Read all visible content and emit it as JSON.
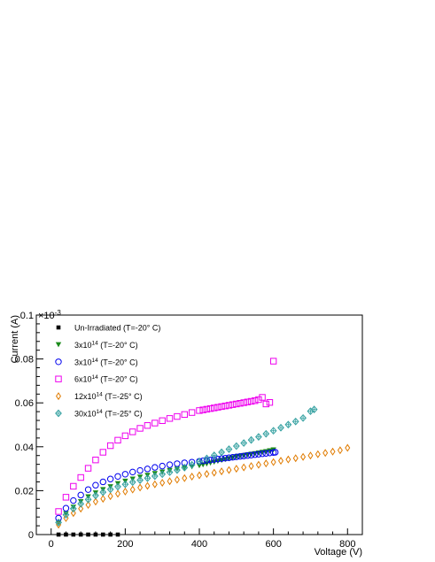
{
  "chart_data": {
    "type": "scatter",
    "title": "",
    "xlabel": "Voltage (V)",
    "ylabel": "Current (A)",
    "y_multiplier_label": "×10",
    "y_multiplier_exp": "-3",
    "xlim": [
      -40,
      840
    ],
    "ylim": [
      0,
      0.1
    ],
    "xticks": [
      0,
      200,
      400,
      600,
      800
    ],
    "xtick_labels": [
      "0",
      "200",
      "400",
      "600",
      "800"
    ],
    "yticks": [
      0,
      0.02,
      0.04,
      0.06,
      0.08,
      0.1
    ],
    "ytick_labels": [
      "0",
      "0.02",
      "0.04",
      "0.06",
      "0.08",
      "0.1"
    ],
    "grid": false,
    "legend_position": "top-left",
    "series": [
      {
        "name": "Un-Irradiated (T=-20° C)",
        "legend_base": "Un-Irradiated (T=-20° C)",
        "legend_exp": "",
        "legend_tail": "",
        "marker": "square-filled",
        "color": "#000000",
        "x": [
          20,
          40,
          60,
          80,
          100,
          120,
          140,
          160,
          180
        ],
        "y": [
          0.0,
          0.0,
          0.0,
          0.0,
          0.0,
          0.0,
          0.0,
          0.0,
          0.0
        ]
      },
      {
        "name": "3x10^14 (T=-20° C)",
        "legend_base": "3x10",
        "legend_exp": "14",
        "legend_tail": " (T=-20° C)",
        "marker": "triangle-down-filled",
        "color": "#1a8a1a",
        "x": [
          20,
          40,
          60,
          80,
          100,
          120,
          140,
          160,
          180,
          200,
          220,
          240,
          260,
          280,
          300,
          320,
          340,
          360,
          380,
          400,
          410,
          420,
          430,
          440,
          450,
          460,
          470,
          480,
          490,
          500,
          510,
          520,
          530,
          540,
          550,
          560,
          570,
          580,
          590,
          600
        ],
        "y": [
          0.0055,
          0.0095,
          0.0125,
          0.015,
          0.0172,
          0.019,
          0.0205,
          0.0218,
          0.0232,
          0.0243,
          0.0253,
          0.0262,
          0.027,
          0.0278,
          0.0285,
          0.0292,
          0.0298,
          0.0304,
          0.0309,
          0.0314,
          0.0318,
          0.0322,
          0.0326,
          0.033,
          0.0334,
          0.0338,
          0.0342,
          0.0346,
          0.035,
          0.0354,
          0.0357,
          0.036,
          0.0363,
          0.0366,
          0.0369,
          0.0372,
          0.0375,
          0.0378,
          0.0382,
          0.0386
        ]
      },
      {
        "name": "3x10^14 (T=-20° C)",
        "legend_base": "3x10",
        "legend_exp": "14",
        "legend_tail": " (T=-20° C)",
        "marker": "circle-open",
        "color": "#0000ee",
        "x": [
          20,
          40,
          60,
          80,
          100,
          120,
          140,
          160,
          180,
          200,
          220,
          240,
          260,
          280,
          300,
          320,
          340,
          360,
          380,
          400,
          410,
          420,
          430,
          440,
          450,
          460,
          470,
          480,
          490,
          500,
          510,
          520,
          530,
          540,
          550,
          560,
          570,
          580,
          590,
          600,
          605
        ],
        "y": [
          0.0075,
          0.012,
          0.0155,
          0.018,
          0.0205,
          0.0225,
          0.024,
          0.0253,
          0.0265,
          0.0275,
          0.0285,
          0.0292,
          0.0299,
          0.0306,
          0.0312,
          0.0318,
          0.0323,
          0.0327,
          0.033,
          0.0334,
          0.0336,
          0.0338,
          0.034,
          0.0342,
          0.0344,
          0.0346,
          0.0348,
          0.035,
          0.0352,
          0.0354,
          0.0356,
          0.0358,
          0.036,
          0.0362,
          0.0364,
          0.0366,
          0.0368,
          0.037,
          0.0372,
          0.0374,
          0.0375
        ]
      },
      {
        "name": "6x10^14 (T=-20° C)",
        "legend_base": "6x10",
        "legend_exp": "14",
        "legend_tail": " (T=-20° C)",
        "marker": "square-open",
        "color": "#ee00ee",
        "x": [
          20,
          40,
          60,
          80,
          100,
          120,
          140,
          160,
          180,
          200,
          220,
          240,
          260,
          280,
          300,
          320,
          340,
          360,
          380,
          400,
          410,
          420,
          430,
          440,
          450,
          460,
          470,
          480,
          490,
          500,
          510,
          520,
          530,
          540,
          550,
          560,
          570,
          580,
          590,
          600
        ],
        "y": [
          0.0105,
          0.017,
          0.022,
          0.026,
          0.0302,
          0.034,
          0.0375,
          0.0405,
          0.043,
          0.045,
          0.0468,
          0.0484,
          0.0497,
          0.0508,
          0.0519,
          0.0529,
          0.0538,
          0.0547,
          0.0556,
          0.0565,
          0.0568,
          0.0571,
          0.0574,
          0.0577,
          0.058,
          0.0583,
          0.0586,
          0.0589,
          0.0592,
          0.0595,
          0.0598,
          0.0601,
          0.0604,
          0.0607,
          0.061,
          0.0615,
          0.0625,
          0.0595,
          0.0602,
          0.079
        ]
      },
      {
        "name": "12x10^14 (T=-25° C)",
        "legend_base": "12x10",
        "legend_exp": "14",
        "legend_tail": " (T=-25° C)",
        "marker": "diamond-open",
        "color": "#e07b00",
        "x": [
          20,
          40,
          60,
          80,
          100,
          120,
          140,
          160,
          180,
          200,
          220,
          240,
          260,
          280,
          300,
          320,
          340,
          360,
          380,
          400,
          420,
          440,
          460,
          480,
          500,
          520,
          540,
          560,
          580,
          600,
          620,
          640,
          660,
          680,
          700,
          720,
          740,
          760,
          780,
          800
        ],
        "y": [
          0.0045,
          0.0075,
          0.0098,
          0.0118,
          0.0135,
          0.015,
          0.0163,
          0.0175,
          0.0186,
          0.0196,
          0.0205,
          0.0214,
          0.0222,
          0.0229,
          0.0236,
          0.0243,
          0.025,
          0.0257,
          0.0264,
          0.027,
          0.0276,
          0.0282,
          0.0288,
          0.0294,
          0.03,
          0.0306,
          0.0312,
          0.0318,
          0.0324,
          0.033,
          0.0336,
          0.0342,
          0.0348,
          0.0354,
          0.036,
          0.0366,
          0.0372,
          0.0378,
          0.0384,
          0.0395
        ]
      },
      {
        "name": "30x10^14 (T=-25° C)",
        "legend_base": "30x10",
        "legend_exp": "14",
        "legend_tail": " (T=-25° C)",
        "marker": "diamond-cross",
        "color": "#2f9e9e",
        "x": [
          20,
          40,
          60,
          80,
          100,
          120,
          140,
          160,
          180,
          200,
          220,
          240,
          260,
          280,
          300,
          320,
          340,
          360,
          380,
          400,
          420,
          440,
          460,
          480,
          500,
          520,
          540,
          560,
          580,
          600,
          620,
          640,
          660,
          680,
          700,
          710
        ],
        "y": [
          0.0055,
          0.009,
          0.0118,
          0.014,
          0.016,
          0.0178,
          0.0193,
          0.0206,
          0.0218,
          0.0229,
          0.0239,
          0.0248,
          0.0257,
          0.0266,
          0.0275,
          0.0284,
          0.0294,
          0.0305,
          0.0318,
          0.0333,
          0.0347,
          0.0361,
          0.0375,
          0.0389,
          0.0403,
          0.0417,
          0.0431,
          0.0445,
          0.0459,
          0.0473,
          0.0487,
          0.0501,
          0.0515,
          0.0531,
          0.0562,
          0.057
        ]
      }
    ]
  }
}
